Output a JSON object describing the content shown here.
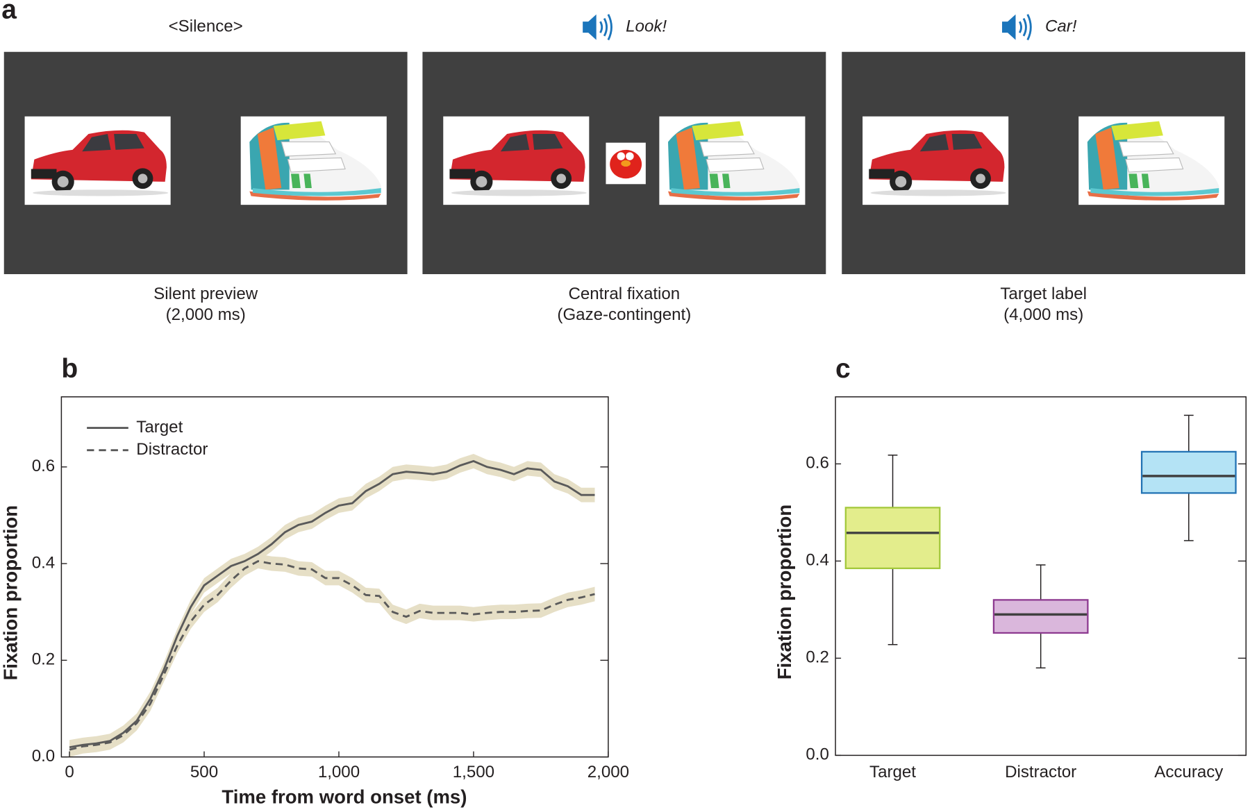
{
  "panel_a": {
    "label": "a",
    "frames": [
      {
        "header": "<Silence>",
        "caption": [
          "Silent preview",
          "(2,000 ms)"
        ]
      },
      {
        "header": "Look!",
        "caption": [
          "Central fixation",
          "(Gaze-contingent)"
        ]
      },
      {
        "header": "Car!",
        "caption": [
          "Target label",
          "(4,000 ms)"
        ]
      }
    ]
  },
  "chart_data": [
    {
      "type": "line",
      "label": "b",
      "xlabel": "Time from word onset (ms)",
      "ylabel": "Fixation proportion",
      "x": [
        0,
        50,
        100,
        150,
        200,
        250,
        300,
        350,
        400,
        450,
        500,
        550,
        600,
        650,
        700,
        750,
        800,
        850,
        900,
        950,
        1000,
        1050,
        1100,
        1150,
        1200,
        1250,
        1300,
        1350,
        1400,
        1450,
        1500,
        1550,
        1600,
        1650,
        1700,
        1750,
        1800,
        1850,
        1900,
        1950
      ],
      "series": [
        {
          "name": "Target",
          "color": "#5a5a5a",
          "band_color": "#e6dfc6",
          "line_style": "solid",
          "error": 0.015,
          "values": [
            0.02,
            0.025,
            0.028,
            0.033,
            0.05,
            0.075,
            0.12,
            0.18,
            0.25,
            0.31,
            0.355,
            0.375,
            0.395,
            0.405,
            0.42,
            0.44,
            0.465,
            0.48,
            0.487,
            0.505,
            0.52,
            0.525,
            0.55,
            0.565,
            0.585,
            0.59,
            0.588,
            0.585,
            0.59,
            0.603,
            0.612,
            0.6,
            0.594,
            0.585,
            0.597,
            0.594,
            0.57,
            0.56,
            0.542,
            0.542
          ]
        },
        {
          "name": "Distractor",
          "color": "#5a5a5a",
          "band_color": "#e6dfc6",
          "line_style": "dashed",
          "error": 0.015,
          "values": [
            0.015,
            0.022,
            0.025,
            0.03,
            0.045,
            0.07,
            0.11,
            0.17,
            0.23,
            0.28,
            0.315,
            0.335,
            0.365,
            0.39,
            0.405,
            0.4,
            0.398,
            0.39,
            0.388,
            0.37,
            0.37,
            0.355,
            0.335,
            0.333,
            0.3,
            0.29,
            0.302,
            0.298,
            0.298,
            0.298,
            0.295,
            0.298,
            0.3,
            0.3,
            0.302,
            0.303,
            0.315,
            0.325,
            0.33,
            0.337
          ]
        }
      ],
      "xlim": [
        -30,
        2000
      ],
      "ylim": [
        0,
        0.745
      ],
      "xticks": [
        0,
        500,
        {
          "value": 1000,
          "label": "1,000"
        },
        {
          "value": 1500,
          "label": "1,500"
        },
        {
          "value": 2000,
          "label": "2,000"
        }
      ],
      "yticks": [
        {
          "value": 0,
          "label": "0.0"
        },
        0.2,
        0.4,
        0.6
      ],
      "legend": "upper-left"
    },
    {
      "type": "box",
      "label": "c",
      "ylabel": "Fixation proportion",
      "categories": [
        "Target",
        "Distractor",
        "Accuracy"
      ],
      "boxes": [
        {
          "whislo": 0.228,
          "q1": 0.385,
          "med": 0.458,
          "q3": 0.51,
          "whishi": 0.618,
          "fill": "#e3ed8c",
          "stroke": "#a3c83c"
        },
        {
          "whislo": 0.18,
          "q1": 0.252,
          "med": 0.29,
          "q3": 0.32,
          "whishi": 0.392,
          "fill": "#dab7dc",
          "stroke": "#8d3a90"
        },
        {
          "whislo": 0.442,
          "q1": 0.54,
          "med": 0.575,
          "q3": 0.625,
          "whishi": 0.7,
          "fill": "#b4e3f5",
          "stroke": "#2273b4"
        }
      ],
      "ylim": [
        0,
        0.738
      ],
      "yticks": [
        {
          "value": 0,
          "label": "0.0"
        },
        0.2,
        0.4,
        0.6
      ]
    }
  ]
}
